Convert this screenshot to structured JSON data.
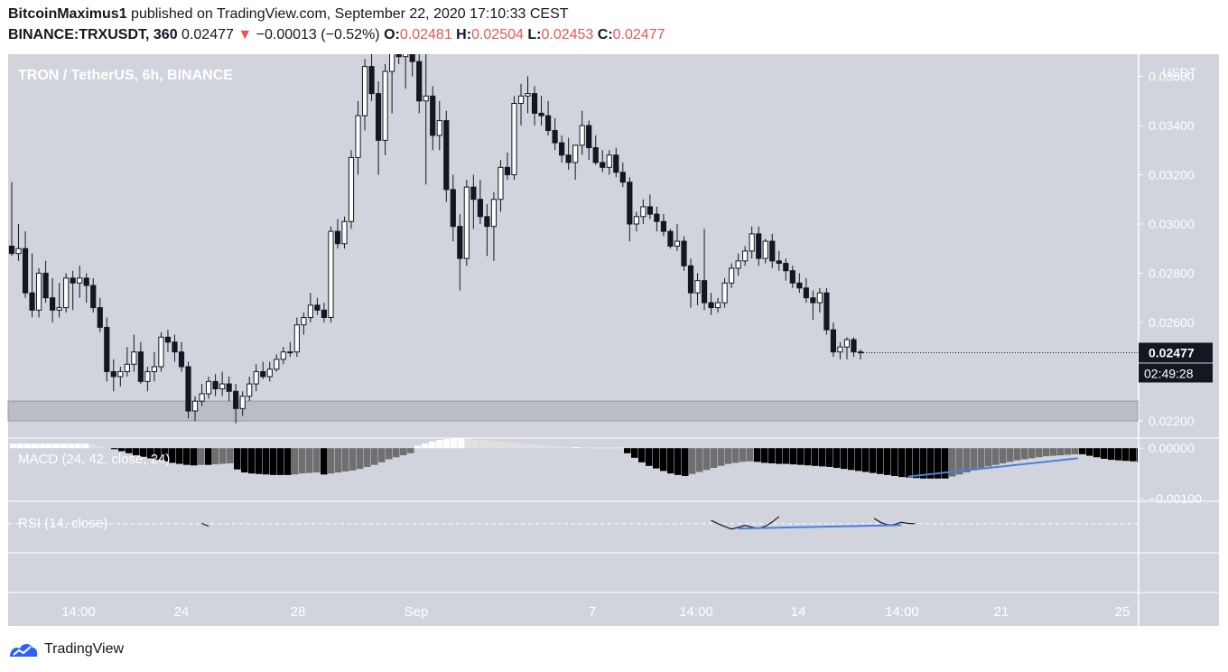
{
  "header": {
    "author": "BitcoinMaximus1",
    "published_text": "published on TradingView.com, September 22, 2020 17:10:33 CEST",
    "symbol_line": "BINANCE:TRXUSDT, 360",
    "last": "0.02477",
    "change_arrow": "▼",
    "change": "−0.00013 (−0.52%)",
    "o_label": "O:",
    "o": "0.02481",
    "h_label": "H:",
    "h": "0.02504",
    "l_label": "L:",
    "l": "0.02453",
    "c_label": "C:",
    "c": "0.02477"
  },
  "colors": {
    "pane_bg": "#d1d4dc",
    "up_body": "#ffffff",
    "down_body": "#131722",
    "neg_hist": "#000000",
    "neg_hist_rising": "#6f6f6f",
    "pos_hist_rising": "#ffffff",
    "pos_hist_falling": "#e0e0e0",
    "trendline": "#4a7fe0",
    "price_tag": "#131722"
  },
  "chart_data": {
    "type": "candlestick",
    "title": "TRON / TetherUS, 6h, BINANCE",
    "currency": "USDT",
    "ylim": [
      0.0213,
      0.0369
    ],
    "y_ticks": [
      "0.03600",
      "0.03400",
      "0.03200",
      "0.03000",
      "0.02800",
      "0.02600",
      "0.02200"
    ],
    "x_ticks": [
      "14:00",
      "24",
      "28",
      "Sep",
      "7",
      "14:00",
      "14",
      "14:00",
      "21",
      "25"
    ],
    "last_price_label": "0.02477",
    "countdown_label": "02:49:28",
    "support_zone": [
      0.022,
      0.0228
    ],
    "candles": [
      [
        0.0291,
        0.0317,
        0.0287,
        0.0288
      ],
      [
        0.0288,
        0.03,
        0.0285,
        0.029
      ],
      [
        0.029,
        0.0297,
        0.027,
        0.0272
      ],
      [
        0.0272,
        0.0288,
        0.0262,
        0.0265
      ],
      [
        0.0265,
        0.0282,
        0.0262,
        0.028
      ],
      [
        0.028,
        0.0285,
        0.0268,
        0.027
      ],
      [
        0.027,
        0.0278,
        0.026,
        0.0265
      ],
      [
        0.0265,
        0.0276,
        0.0262,
        0.0266
      ],
      [
        0.0266,
        0.028,
        0.0264,
        0.0278
      ],
      [
        0.0278,
        0.0281,
        0.0265,
        0.0276
      ],
      [
        0.0276,
        0.0283,
        0.027,
        0.0278
      ],
      [
        0.0278,
        0.028,
        0.0268,
        0.0275
      ],
      [
        0.0275,
        0.0278,
        0.0264,
        0.0266
      ],
      [
        0.0266,
        0.027,
        0.0256,
        0.0258
      ],
      [
        0.0258,
        0.0262,
        0.0236,
        0.024
      ],
      [
        0.024,
        0.0245,
        0.0232,
        0.0238
      ],
      [
        0.0238,
        0.0242,
        0.0234,
        0.024
      ],
      [
        0.024,
        0.025,
        0.0238,
        0.0243
      ],
      [
        0.0243,
        0.0255,
        0.024,
        0.0248
      ],
      [
        0.0248,
        0.0252,
        0.0235,
        0.0236
      ],
      [
        0.0236,
        0.0242,
        0.0232,
        0.024
      ],
      [
        0.024,
        0.0248,
        0.0236,
        0.0242
      ],
      [
        0.0242,
        0.0256,
        0.024,
        0.0254
      ],
      [
        0.0254,
        0.0257,
        0.0248,
        0.0252
      ],
      [
        0.0252,
        0.0255,
        0.0244,
        0.0248
      ],
      [
        0.0248,
        0.0252,
        0.024,
        0.0242
      ],
      [
        0.0242,
        0.0244,
        0.0221,
        0.0224
      ],
      [
        0.0224,
        0.023,
        0.022,
        0.0228
      ],
      [
        0.0228,
        0.0235,
        0.0226,
        0.0231
      ],
      [
        0.0231,
        0.0238,
        0.0229,
        0.0236
      ],
      [
        0.0236,
        0.0239,
        0.023,
        0.0233
      ],
      [
        0.0233,
        0.024,
        0.023,
        0.0235
      ],
      [
        0.0235,
        0.0238,
        0.0228,
        0.0232
      ],
      [
        0.0232,
        0.0235,
        0.0219,
        0.0225
      ],
      [
        0.0225,
        0.0232,
        0.0222,
        0.023
      ],
      [
        0.023,
        0.0238,
        0.0228,
        0.0235
      ],
      [
        0.0235,
        0.0243,
        0.0232,
        0.024
      ],
      [
        0.024,
        0.0244,
        0.0237,
        0.0238
      ],
      [
        0.0238,
        0.0244,
        0.0236,
        0.0241
      ],
      [
        0.0241,
        0.0247,
        0.024,
        0.0245
      ],
      [
        0.0245,
        0.025,
        0.0243,
        0.0248
      ],
      [
        0.0248,
        0.0252,
        0.0246,
        0.0248
      ],
      [
        0.0248,
        0.0262,
        0.0246,
        0.0259
      ],
      [
        0.0259,
        0.0264,
        0.0255,
        0.0262
      ],
      [
        0.0262,
        0.0272,
        0.026,
        0.0267
      ],
      [
        0.0267,
        0.027,
        0.0263,
        0.0265
      ],
      [
        0.0265,
        0.0268,
        0.026,
        0.0262
      ],
      [
        0.0262,
        0.0299,
        0.026,
        0.0297
      ],
      [
        0.0297,
        0.0302,
        0.029,
        0.0292
      ],
      [
        0.0292,
        0.0303,
        0.029,
        0.0301
      ],
      [
        0.0301,
        0.033,
        0.0298,
        0.0327
      ],
      [
        0.0327,
        0.035,
        0.032,
        0.0344
      ],
      [
        0.0344,
        0.0367,
        0.0338,
        0.0364
      ],
      [
        0.0364,
        0.0375,
        0.035,
        0.0353
      ],
      [
        0.0353,
        0.0358,
        0.032,
        0.0334
      ],
      [
        0.0334,
        0.0365,
        0.0328,
        0.0362
      ],
      [
        0.0362,
        0.0378,
        0.0345,
        0.0375
      ],
      [
        0.0375,
        0.038,
        0.0365,
        0.0368
      ],
      [
        0.0368,
        0.0382,
        0.0355,
        0.0371
      ],
      [
        0.0371,
        0.0378,
        0.036,
        0.0366
      ],
      [
        0.0366,
        0.037,
        0.0345,
        0.035
      ],
      [
        0.035,
        0.0369,
        0.0316,
        0.0352
      ],
      [
        0.0352,
        0.0356,
        0.033,
        0.0336
      ],
      [
        0.0336,
        0.035,
        0.033,
        0.0342
      ],
      [
        0.0342,
        0.0346,
        0.0309,
        0.0314
      ],
      [
        0.0314,
        0.032,
        0.0293,
        0.0299
      ],
      [
        0.0299,
        0.0304,
        0.0273,
        0.0286
      ],
      [
        0.0286,
        0.0318,
        0.0283,
        0.0315
      ],
      [
        0.0315,
        0.032,
        0.0298,
        0.031
      ],
      [
        0.031,
        0.0318,
        0.03,
        0.0303
      ],
      [
        0.0303,
        0.0308,
        0.0287,
        0.0299
      ],
      [
        0.0299,
        0.0313,
        0.0285,
        0.031
      ],
      [
        0.031,
        0.0326,
        0.0305,
        0.0323
      ],
      [
        0.0323,
        0.0329,
        0.0318,
        0.032
      ],
      [
        0.032,
        0.0352,
        0.0318,
        0.0349
      ],
      [
        0.0349,
        0.0357,
        0.034,
        0.0352
      ],
      [
        0.0352,
        0.036,
        0.0345,
        0.0353
      ],
      [
        0.0353,
        0.0356,
        0.034,
        0.0345
      ],
      [
        0.0345,
        0.0352,
        0.034,
        0.0344
      ],
      [
        0.0344,
        0.035,
        0.0336,
        0.0338
      ],
      [
        0.0338,
        0.0343,
        0.033,
        0.0333
      ],
      [
        0.0333,
        0.0336,
        0.0325,
        0.0328
      ],
      [
        0.0328,
        0.0335,
        0.0322,
        0.0325
      ],
      [
        0.0325,
        0.0332,
        0.0318,
        0.0332
      ],
      [
        0.0332,
        0.0346,
        0.0328,
        0.034
      ],
      [
        0.034,
        0.0342,
        0.0326,
        0.0331
      ],
      [
        0.0331,
        0.0336,
        0.0324,
        0.0325
      ],
      [
        0.0325,
        0.033,
        0.0321,
        0.0323
      ],
      [
        0.0323,
        0.033,
        0.032,
        0.0328
      ],
      [
        0.0328,
        0.0331,
        0.0319,
        0.0321
      ],
      [
        0.0321,
        0.0325,
        0.0315,
        0.0317
      ],
      [
        0.0317,
        0.0319,
        0.0293,
        0.03
      ],
      [
        0.03,
        0.0305,
        0.0297,
        0.0303
      ],
      [
        0.0303,
        0.031,
        0.03,
        0.0307
      ],
      [
        0.0307,
        0.0312,
        0.0302,
        0.0304
      ],
      [
        0.0304,
        0.0307,
        0.0297,
        0.0301
      ],
      [
        0.0301,
        0.0304,
        0.0295,
        0.0297
      ],
      [
        0.0297,
        0.0298,
        0.029,
        0.0291
      ],
      [
        0.0291,
        0.03,
        0.0289,
        0.0293
      ],
      [
        0.0293,
        0.0295,
        0.0281,
        0.0283
      ],
      [
        0.0283,
        0.0286,
        0.0266,
        0.0272
      ],
      [
        0.0272,
        0.028,
        0.0267,
        0.0277
      ],
      [
        0.0277,
        0.0298,
        0.0265,
        0.0268
      ],
      [
        0.0268,
        0.0272,
        0.0263,
        0.0266
      ],
      [
        0.0266,
        0.027,
        0.0264,
        0.0268
      ],
      [
        0.0268,
        0.0278,
        0.0266,
        0.0276
      ],
      [
        0.0276,
        0.0284,
        0.0274,
        0.0282
      ],
      [
        0.0282,
        0.0288,
        0.0279,
        0.0285
      ],
      [
        0.0285,
        0.0291,
        0.0283,
        0.0289
      ],
      [
        0.0289,
        0.0299,
        0.0286,
        0.0296
      ],
      [
        0.0296,
        0.0299,
        0.0283,
        0.0286
      ],
      [
        0.0286,
        0.0294,
        0.0284,
        0.0293
      ],
      [
        0.0293,
        0.0296,
        0.0282,
        0.0285
      ],
      [
        0.0285,
        0.0289,
        0.0281,
        0.0284
      ],
      [
        0.0284,
        0.0286,
        0.0277,
        0.0281
      ],
      [
        0.0281,
        0.0283,
        0.0274,
        0.0276
      ],
      [
        0.0276,
        0.028,
        0.0272,
        0.0274
      ],
      [
        0.0274,
        0.0278,
        0.0268,
        0.027
      ],
      [
        0.027,
        0.0273,
        0.0261,
        0.0268
      ],
      [
        0.0268,
        0.0274,
        0.0264,
        0.0272
      ],
      [
        0.0272,
        0.0274,
        0.0255,
        0.0257
      ],
      [
        0.0257,
        0.026,
        0.0246,
        0.0248
      ],
      [
        0.0248,
        0.0252,
        0.0245,
        0.025
      ],
      [
        0.025,
        0.0254,
        0.0245,
        0.0253
      ],
      [
        0.0253,
        0.0254,
        0.0246,
        0.0248
      ],
      [
        0.0248,
        0.0249,
        0.0245,
        0.0248
      ]
    ],
    "indicators": {
      "macd_label": "MACD (24, 42, close, 24)",
      "macd_ticks": [
        "0.00000",
        "−0.00100"
      ],
      "macd_ylim": [
        -0.00105,
        0.0002
      ],
      "macd_hist": [
        9e-05,
        9e-05,
        9e-05,
        9e-05,
        9e-05,
        9e-05,
        9e-05,
        9e-05,
        9e-05,
        9e-05,
        9e-05,
        7e-05,
        4e-05,
        1e-05,
        -2e-05,
        -6e-05,
        -0.0001,
        -0.00014,
        -0.00017,
        -0.0002,
        -0.00023,
        -0.00026,
        -0.00029,
        -0.00031,
        -0.00033,
        -0.00034,
        -0.00033,
        -0.00033,
        -0.00032,
        -0.00031,
        -0.0003,
        -0.00042,
        -0.00048,
        -0.0005,
        -0.00051,
        -0.00052,
        -0.00053,
        -0.00053,
        -0.00053,
        -0.00052,
        -0.0005,
        -0.00049,
        -0.00048,
        -0.00052,
        -0.0005,
        -0.00048,
        -0.00046,
        -0.00044,
        -0.00041,
        -0.00037,
        -0.00033,
        -0.00028,
        -0.00022,
        -0.00018,
        -0.00014,
        -0.0001,
        5e-05,
        9e-05,
        0.00013,
        0.00016,
        0.00018,
        0.00019,
        0.00019,
        0.00018,
        0.00017,
        0.00016,
        0.00015,
        0.00014,
        0.00012,
        0.00011,
        0.0001,
        9e-05,
        8e-05,
        6e-05,
        5e-05,
        4e-05,
        3e-05,
        2e-05,
        2e-05,
        1e-05,
        1e-05,
        1e-05,
        1e-05,
        1e-05,
        1e-05,
        -0.0001,
        -0.00019,
        -0.00028,
        -0.00035,
        -0.0004,
        -0.00045,
        -0.0005,
        -0.00053,
        -0.00055,
        -0.00051,
        -0.00047,
        -0.00043,
        -0.00039,
        -0.00035,
        -0.00031,
        -0.00029,
        -0.00027,
        -0.00026,
        -0.00027,
        -0.00029,
        -0.0003,
        -0.00031,
        -0.00031,
        -0.00032,
        -0.00033,
        -0.00034,
        -0.00035,
        -0.00036,
        -0.00037,
        -0.00039,
        -0.00041,
        -0.00043,
        -0.00045,
        -0.00047,
        -0.00049,
        -0.00051,
        -0.00053,
        -0.00055,
        -0.00057,
        -0.00058,
        -0.00059,
        -0.0006,
        -0.0006,
        -0.0006,
        -0.0006,
        -0.00056,
        -0.00052,
        -0.00048,
        -0.00044,
        -0.0004,
        -0.00036,
        -0.00033,
        -0.0003,
        -0.00027,
        -0.00024,
        -0.00022,
        -0.0002,
        -0.00018,
        -0.00016,
        -0.00015,
        -0.00014,
        -0.00013,
        -0.00012,
        -0.00012,
        -0.00015,
        -0.00018,
        -0.00021,
        -0.00023,
        -0.00024,
        -0.00025,
        -0.00026,
        -0.00027,
        -0.00028,
        -0.00029,
        -0.0003,
        -0.00031
      ],
      "rsi_label": "RSI (14, close)",
      "rsi_ylim": [
        0,
        100
      ],
      "rsi_lines": [
        70,
        30
      ],
      "rsi_visible_segments": [
        [
          [
            28,
            31
          ],
          [
            29,
            21
          ]
        ],
        [
          [
            103,
            42
          ],
          [
            104,
            30
          ],
          [
            105,
            20
          ],
          [
            106,
            11
          ],
          [
            107,
            17
          ],
          [
            108,
            24
          ],
          [
            109,
            18
          ],
          [
            110,
            14
          ],
          [
            111,
            21
          ],
          [
            112,
            36
          ],
          [
            113,
            55
          ]
        ],
        [
          [
            127,
            49
          ],
          [
            128,
            34
          ],
          [
            129,
            26
          ],
          [
            130,
            27
          ],
          [
            131,
            35
          ],
          [
            132,
            31
          ],
          [
            133,
            30
          ]
        ]
      ]
    },
    "trendlines": [
      {
        "pane": "macd",
        "from": [
          132,
          -0.00056
        ],
        "to": [
          157,
          -0.0002
        ]
      },
      {
        "pane": "rsi",
        "from": [
          107,
          13
        ],
        "to": [
          131,
          25
        ]
      }
    ]
  },
  "footer": {
    "brand": "TradingView"
  }
}
